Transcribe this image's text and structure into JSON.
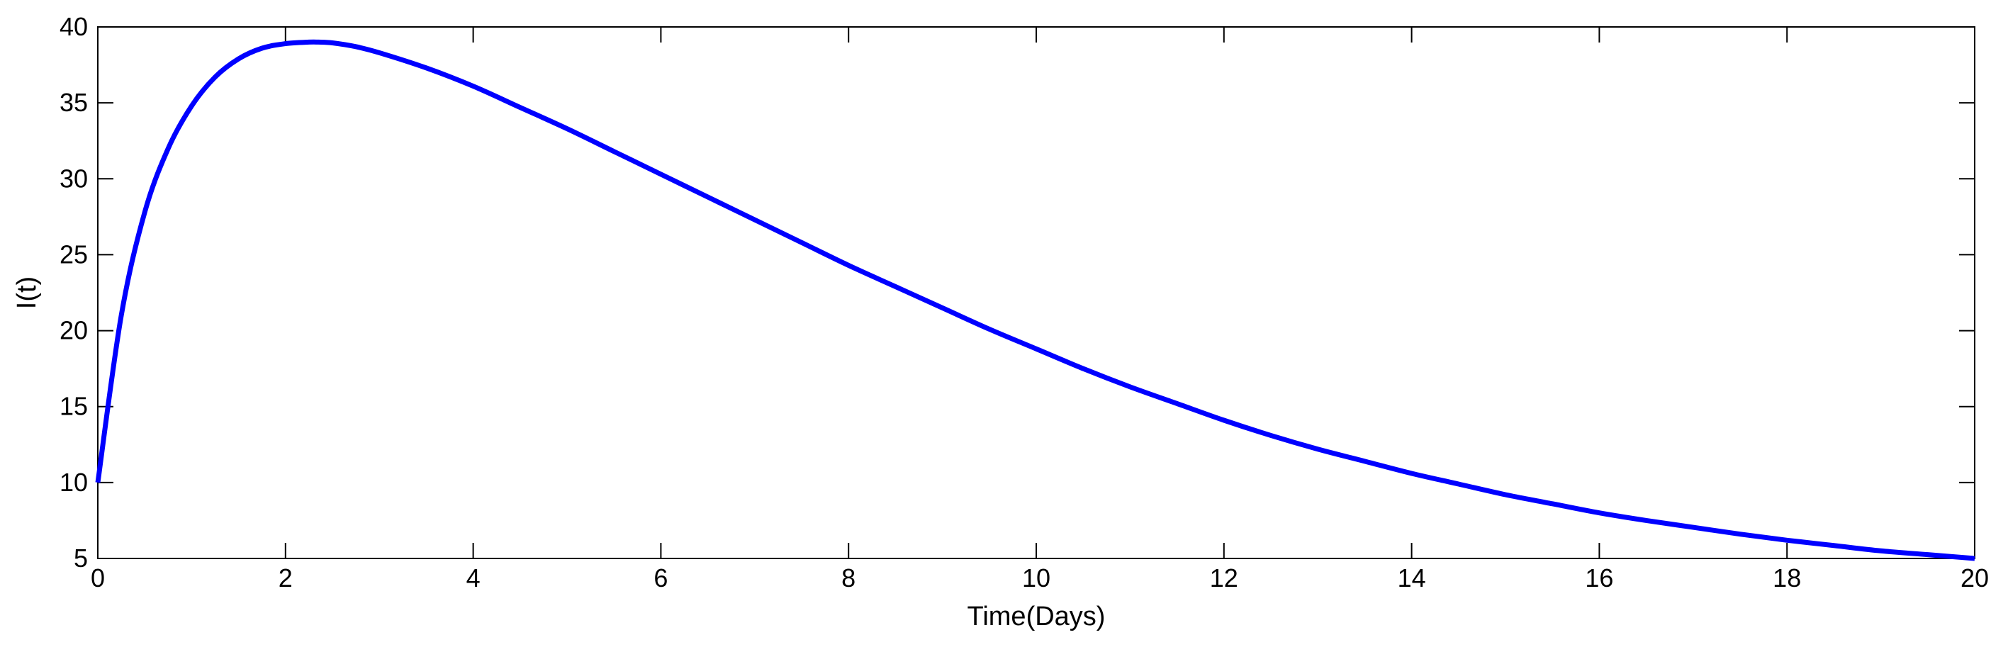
{
  "chart_data": {
    "type": "line",
    "title": "",
    "xlabel": "Time(Days)",
    "ylabel": "I(t)",
    "xlim": [
      0,
      20
    ],
    "ylim": [
      5,
      40
    ],
    "xticks": [
      0,
      2,
      4,
      6,
      8,
      10,
      12,
      14,
      16,
      18,
      20
    ],
    "yticks": [
      5,
      10,
      15,
      20,
      25,
      30,
      35,
      40
    ],
    "grid": false,
    "legend": "none",
    "series": [
      {
        "color": "#0000ff",
        "x": [
          0,
          0.25,
          0.5,
          0.75,
          1,
          1.25,
          1.5,
          1.75,
          2,
          2.25,
          2.35,
          2.5,
          2.75,
          3,
          3.5,
          4,
          4.5,
          5,
          5.5,
          6,
          6.5,
          7,
          7.5,
          8,
          8.5,
          9,
          9.5,
          10,
          10.5,
          11,
          11.5,
          12,
          12.5,
          13,
          13.5,
          14,
          14.5,
          15,
          15.5,
          16,
          16.5,
          17,
          17.5,
          18,
          18.5,
          19,
          19.5,
          20
        ],
        "y": [
          10,
          21.0,
          27.8,
          32.0,
          34.8,
          36.7,
          37.9,
          38.6,
          38.9,
          39.0,
          39.0,
          38.95,
          38.7,
          38.3,
          37.3,
          36.1,
          34.7,
          33.3,
          31.8,
          30.3,
          28.8,
          27.3,
          25.8,
          24.3,
          22.9,
          21.5,
          20.1,
          18.8,
          17.5,
          16.3,
          15.2,
          14.1,
          13.1,
          12.2,
          11.4,
          10.6,
          9.9,
          9.2,
          8.6,
          8.0,
          7.5,
          7.05,
          6.6,
          6.2,
          5.85,
          5.5,
          5.25,
          5.0
        ]
      }
    ]
  }
}
